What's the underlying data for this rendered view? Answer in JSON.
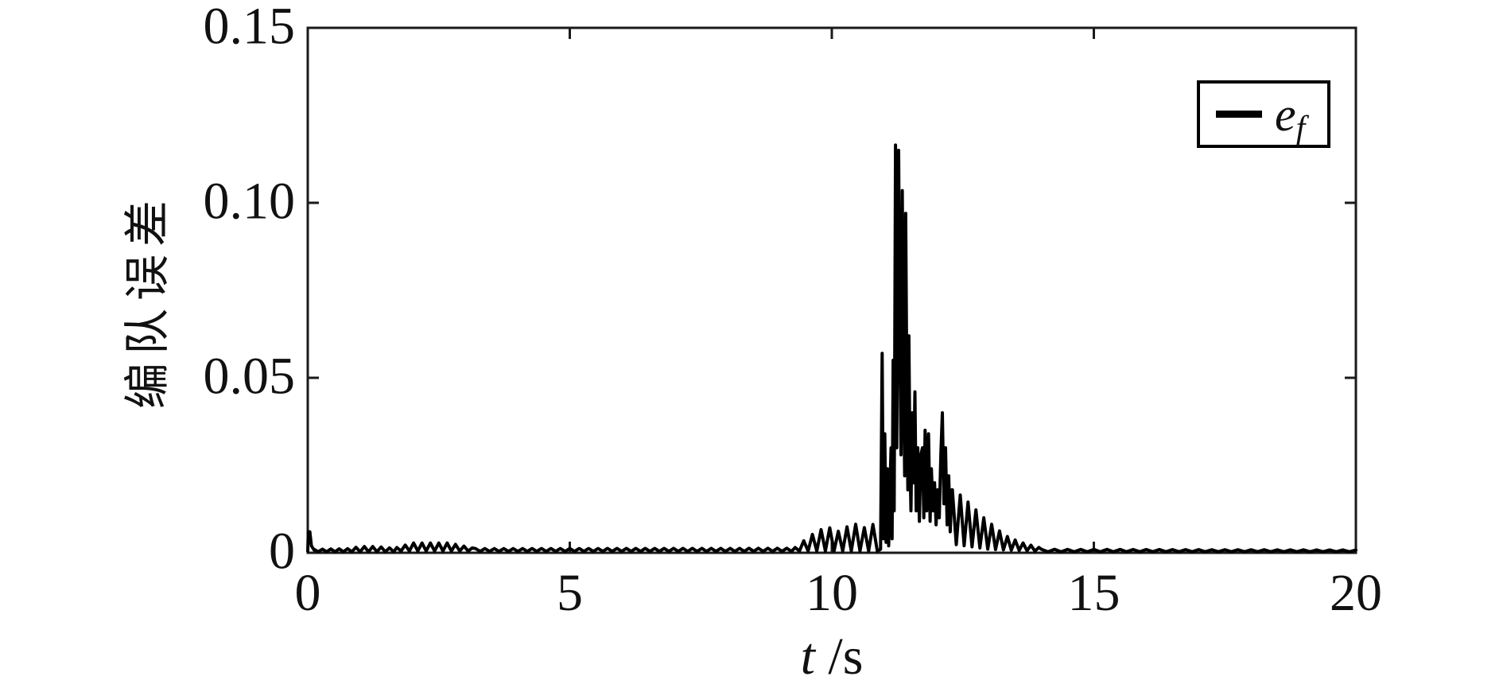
{
  "figure": {
    "background": "#ffffff",
    "line_color": "#000000",
    "axis_color": "#1a1a1a",
    "text_color": "#111111"
  },
  "chart_data": {
    "type": "line",
    "title": "",
    "xlabel": "t /s",
    "ylabel": "编队误差",
    "xlim": [
      0,
      20
    ],
    "ylim": [
      0,
      0.15
    ],
    "xticks": [
      0,
      5,
      10,
      15,
      20
    ],
    "xtick_labels": [
      "0",
      "5",
      "10",
      "15",
      "20"
    ],
    "yticks": [
      0,
      0.05,
      0.1,
      0.15
    ],
    "ytick_labels": [
      "0",
      "0.05",
      "0.10",
      "0.15"
    ],
    "grid": false,
    "box": true,
    "tick_direction": "in",
    "legend": {
      "position": "top-right",
      "label": "e_f",
      "label_main": "e",
      "label_sub": "f"
    },
    "labels": {
      "xlabel_t": "t",
      "xlabel_unit": " /s"
    },
    "series": [
      {
        "name": "e_f",
        "color": "#000000",
        "peak": {
          "t": 11.22,
          "value": 0.117
        },
        "segments": [
          {
            "type": "points",
            "pts": [
              [
                0,
                0.0005
              ],
              [
                0.01,
                0.006
              ],
              [
                0.04,
                0.006
              ],
              [
                0.07,
                0.002
              ],
              [
                0.12,
                0.0008
              ]
            ]
          },
          {
            "type": "osc",
            "t0": 0.12,
            "t1": 1.7,
            "period": 0.16,
            "hi": [
              [
                0.12,
                0.001
              ],
              [
                0.8,
                0.0012
              ],
              [
                1.0,
                0.0018
              ],
              [
                1.3,
                0.0018
              ],
              [
                1.7,
                0.0012
              ]
            ],
            "lo": 0.0003
          },
          {
            "type": "osc",
            "t0": 1.7,
            "t1": 3.2,
            "period": 0.16,
            "hi": [
              [
                1.7,
                0.0015
              ],
              [
                2.0,
                0.0028
              ],
              [
                2.7,
                0.0028
              ],
              [
                3.2,
                0.0012
              ]
            ],
            "lo": 0.0005
          },
          {
            "type": "osc",
            "t0": 3.2,
            "t1": 9.3,
            "period": 0.18,
            "hi": [
              [
                3.2,
                0.0012
              ],
              [
                9.3,
                0.0013
              ]
            ],
            "lo": 0.0004
          },
          {
            "type": "osc",
            "t0": 9.3,
            "t1": 10.92,
            "period": 0.165,
            "hi": [
              [
                9.3,
                0.0015
              ],
              [
                9.6,
                0.005
              ],
              [
                9.9,
                0.0075
              ],
              [
                10.15,
                0.006
              ],
              [
                10.4,
                0.0085
              ],
              [
                10.65,
                0.007
              ],
              [
                10.9,
                0.009
              ]
            ],
            "lo": 0.0005
          },
          {
            "type": "points",
            "pts": [
              [
                10.93,
                0.001
              ],
              [
                10.96,
                0.057
              ],
              [
                10.985,
                0.004
              ],
              [
                11.01,
                0.034
              ],
              [
                11.035,
                0.003
              ],
              [
                11.06,
                0.024
              ],
              [
                11.085,
                0.002
              ],
              [
                11.11,
                0.018
              ],
              [
                11.13,
                0.03
              ],
              [
                11.15,
                0.004
              ],
              [
                11.17,
                0.055
              ],
              [
                11.19,
                0.012
              ],
              [
                11.215,
                0.1165
              ],
              [
                11.24,
                0.03
              ],
              [
                11.26,
                0.092
              ],
              [
                11.275,
                0.115
              ],
              [
                11.3,
                0.058
              ],
              [
                11.32,
                0.028
              ],
              [
                11.345,
                0.1035
              ],
              [
                11.37,
                0.048
              ],
              [
                11.39,
                0.022
              ],
              [
                11.41,
                0.097
              ],
              [
                11.43,
                0.052
              ],
              [
                11.45,
                0.018
              ],
              [
                11.47,
                0.062
              ],
              [
                11.49,
                0.028
              ],
              [
                11.51,
                0.012
              ],
              [
                11.535,
                0.04
              ],
              [
                11.56,
                0.02
              ],
              [
                11.585,
                0.046
              ],
              [
                11.61,
                0.012
              ],
              [
                11.64,
                0.03
              ],
              [
                11.67,
                0.009
              ],
              [
                11.7,
                0.028
              ],
              [
                11.73,
                0.03
              ],
              [
                11.755,
                0.01
              ],
              [
                11.78,
                0.035
              ],
              [
                11.81,
                0.012
              ],
              [
                11.845,
                0.034
              ],
              [
                11.875,
                0.009
              ],
              [
                11.9,
                0.024
              ],
              [
                11.93,
                0.012
              ],
              [
                11.96,
                0.02
              ],
              [
                11.99,
                0.008
              ],
              [
                12.02,
                0.018
              ],
              [
                12.05,
                0.01
              ],
              [
                12.08,
                0.028
              ],
              [
                12.11,
                0.04
              ],
              [
                12.14,
                0.014
              ],
              [
                12.17,
                0.03
              ],
              [
                12.2,
                0.008
              ],
              [
                12.23,
                0.022
              ],
              [
                12.26,
                0.006
              ],
              [
                12.29,
                0.018
              ]
            ]
          },
          {
            "type": "osc",
            "t0": 12.3,
            "t1": 14.0,
            "period": 0.15,
            "hi": [
              [
                12.3,
                0.018
              ],
              [
                12.5,
                0.016
              ],
              [
                12.7,
                0.013
              ],
              [
                12.9,
                0.01
              ],
              [
                13.1,
                0.0075
              ],
              [
                13.3,
                0.005
              ],
              [
                13.6,
                0.003
              ],
              [
                14.0,
                0.0013
              ]
            ],
            "lo": [
              [
                12.3,
                0.0025
              ],
              [
                13.0,
                0.001
              ],
              [
                14.0,
                0.0004
              ]
            ]
          },
          {
            "type": "osc",
            "t0": 14.0,
            "t1": 20.0,
            "period": 0.25,
            "hi": [
              [
                14.0,
                0.001
              ],
              [
                20.0,
                0.0008
              ]
            ],
            "lo": 0.0003
          }
        ]
      }
    ]
  }
}
